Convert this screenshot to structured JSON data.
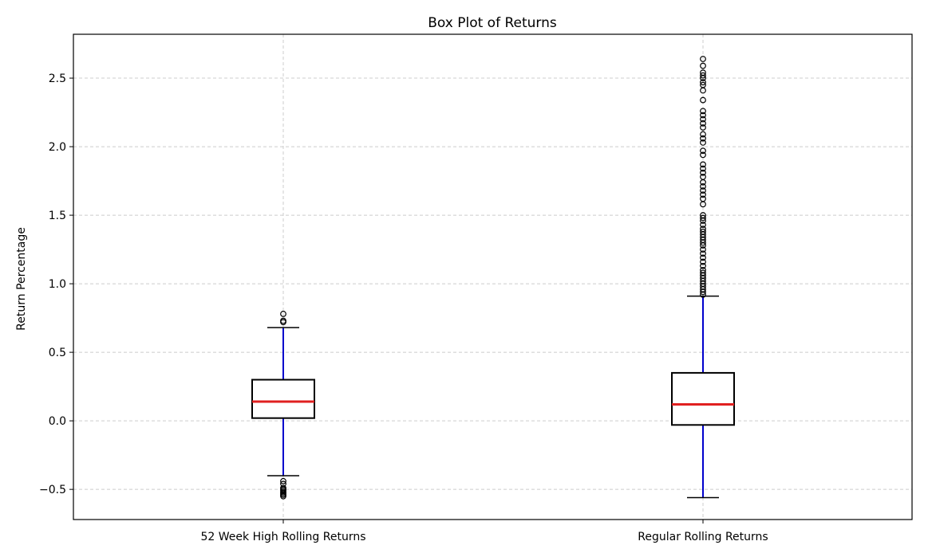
{
  "chart_data": {
    "type": "box",
    "title": "Box Plot of Returns",
    "xlabel": "",
    "ylabel": "Return Percentage",
    "ylim": [
      -0.72,
      2.82
    ],
    "yticks": [
      -0.5,
      0.0,
      0.5,
      1.0,
      1.5,
      2.0,
      2.5
    ],
    "ytick_labels": [
      "−0.5",
      "0.0",
      "0.5",
      "1.0",
      "1.5",
      "2.0",
      "2.5"
    ],
    "grid": true,
    "colors": {
      "box": "#000000",
      "median": "#e02020",
      "whisker": "#0000cc",
      "grid": "#cccccc",
      "cap": "#000000"
    },
    "series": [
      {
        "name": "52 Week High Rolling Returns",
        "q1": 0.02,
        "median": 0.14,
        "q3": 0.3,
        "whisker_low": -0.4,
        "whisker_high": 0.68,
        "outliers": [
          0.78,
          0.73,
          0.72,
          -0.44,
          -0.46,
          -0.49,
          -0.5,
          -0.51,
          -0.52,
          -0.53,
          -0.54,
          -0.55
        ]
      },
      {
        "name": "Regular Rolling Returns",
        "q1": -0.03,
        "median": 0.12,
        "q3": 0.35,
        "whisker_low": -0.56,
        "whisker_high": 0.91,
        "outliers": [
          0.92,
          0.94,
          0.96,
          0.98,
          1.0,
          1.02,
          1.04,
          1.06,
          1.08,
          1.1,
          1.13,
          1.16,
          1.19,
          1.22,
          1.25,
          1.28,
          1.3,
          1.32,
          1.34,
          1.36,
          1.38,
          1.4,
          1.43,
          1.46,
          1.48,
          1.5,
          1.58,
          1.62,
          1.65,
          1.68,
          1.71,
          1.74,
          1.78,
          1.81,
          1.84,
          1.87,
          1.94,
          1.97,
          2.03,
          2.06,
          2.09,
          2.14,
          2.17,
          2.2,
          2.23,
          2.26,
          2.34,
          2.41,
          2.45,
          2.47,
          2.5,
          2.52,
          2.54,
          2.59,
          2.64
        ]
      }
    ]
  }
}
